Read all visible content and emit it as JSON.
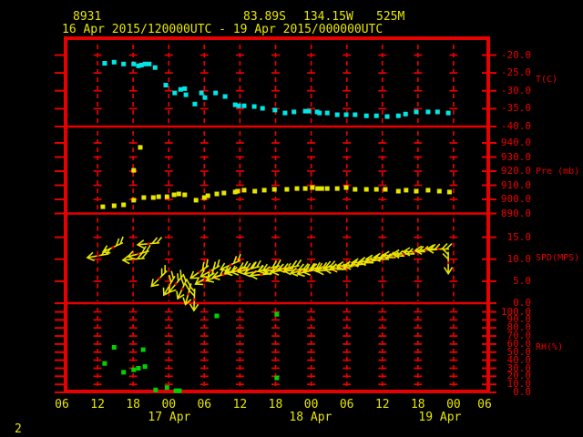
{
  "page_number": "2",
  "header": {
    "station_id": "8931",
    "latitude": "83.89S",
    "longitude": "134.15W",
    "elevation": "525M",
    "time_range": "16 Apr 2015/120000UTC - 19 Apr 2015/000000UTC"
  },
  "colors": {
    "background": "#000000",
    "red": "#e60000",
    "yellow": "#e6e600",
    "cyan": "#00e6e6",
    "green": "#00d200"
  },
  "x_axis": {
    "hour_labels": [
      "06",
      "12",
      "18",
      "00",
      "06",
      "12",
      "18",
      "00",
      "06",
      "12",
      "18",
      "00",
      "06"
    ],
    "date_labels": [
      {
        "label": "17 Apr",
        "h": 18.1
      },
      {
        "label": "18 Apr",
        "h": 41.9
      },
      {
        "label": "19 Apr",
        "h": 63.7
      }
    ],
    "hours_span": 72,
    "start_label": "16 Apr 2015 06UTC"
  },
  "chart_data": [
    {
      "id": "temperature",
      "type": "scatter",
      "marker": "square",
      "color": "#00e6e6",
      "ylabel": "T(C)",
      "ylim": [
        -40,
        -15.8
      ],
      "yticks": [
        {
          "v": -20,
          "label": "-20.0"
        },
        {
          "v": -25,
          "label": "-25.0"
        },
        {
          "v": -30,
          "label": "-30.0"
        },
        {
          "v": -35,
          "label": "-35.0"
        },
        {
          "v": -40,
          "label": "-40.0"
        }
      ],
      "points": [
        [
          7.2,
          -22.3
        ],
        [
          8.8,
          -22.0
        ],
        [
          10.4,
          -22.5
        ],
        [
          12.1,
          -22.5
        ],
        [
          12.9,
          -23.0
        ],
        [
          13.4,
          -22.8
        ],
        [
          14.0,
          -22.5
        ],
        [
          14.7,
          -22.5
        ],
        [
          15.7,
          -23.5
        ],
        [
          17.5,
          -28.4
        ],
        [
          19.0,
          -30.6
        ],
        [
          20.0,
          -29.6
        ],
        [
          20.7,
          -29.4
        ],
        [
          20.9,
          -31.1
        ],
        [
          22.4,
          -33.7
        ],
        [
          23.5,
          -30.6
        ],
        [
          24.1,
          -31.9
        ],
        [
          25.9,
          -30.6
        ],
        [
          27.5,
          -31.6
        ],
        [
          29.2,
          -33.9
        ],
        [
          29.8,
          -34.2
        ],
        [
          30.7,
          -34.2
        ],
        [
          32.4,
          -34.4
        ],
        [
          33.8,
          -34.9
        ],
        [
          35.9,
          -35.4
        ],
        [
          37.6,
          -36.2
        ],
        [
          39.1,
          -35.9
        ],
        [
          41.0,
          -35.7
        ],
        [
          41.6,
          -35.7
        ],
        [
          43.0,
          -35.9
        ],
        [
          43.4,
          -36.2
        ],
        [
          44.7,
          -36.2
        ],
        [
          46.4,
          -36.7
        ],
        [
          47.9,
          -36.7
        ],
        [
          49.4,
          -36.7
        ],
        [
          51.3,
          -37.0
        ],
        [
          53.0,
          -37.0
        ],
        [
          54.8,
          -37.2
        ],
        [
          56.7,
          -37.0
        ],
        [
          57.9,
          -36.5
        ],
        [
          59.7,
          -35.9
        ],
        [
          61.7,
          -35.9
        ],
        [
          63.3,
          -35.9
        ],
        [
          65.1,
          -36.2
        ]
      ]
    },
    {
      "id": "pressure",
      "type": "scatter",
      "marker": "square",
      "color": "#e6e600",
      "ylabel": "Pre (mb)",
      "ylim": [
        890,
        951.6
      ],
      "yticks": [
        {
          "v": 940,
          "label": "940.0"
        },
        {
          "v": 930,
          "label": "930.0"
        },
        {
          "v": 920,
          "label": "920.0"
        },
        {
          "v": 910,
          "label": "910.0"
        },
        {
          "v": 900,
          "label": "900.0"
        },
        {
          "v": 890,
          "label": "890.0"
        }
      ],
      "points": [
        [
          6.9,
          894.8
        ],
        [
          8.8,
          895.5
        ],
        [
          10.4,
          896.1
        ],
        [
          12.1,
          899.4
        ],
        [
          12.1,
          920.6
        ],
        [
          13.2,
          936.8
        ],
        [
          13.8,
          901.3
        ],
        [
          15.4,
          901.3
        ],
        [
          16.3,
          901.9
        ],
        [
          17.7,
          901.9
        ],
        [
          18.9,
          903.2
        ],
        [
          19.7,
          903.9
        ],
        [
          20.7,
          903.2
        ],
        [
          22.6,
          899.4
        ],
        [
          24.0,
          901.3
        ],
        [
          24.6,
          902.6
        ],
        [
          26.1,
          903.9
        ],
        [
          27.3,
          904.5
        ],
        [
          29.2,
          905.2
        ],
        [
          29.6,
          905.8
        ],
        [
          30.7,
          906.5
        ],
        [
          32.5,
          905.8
        ],
        [
          34.1,
          906.5
        ],
        [
          35.8,
          907.1
        ],
        [
          37.9,
          907.1
        ],
        [
          39.6,
          907.7
        ],
        [
          41.0,
          907.7
        ],
        [
          42.2,
          908.4
        ],
        [
          43.1,
          907.7
        ],
        [
          43.8,
          907.7
        ],
        [
          44.7,
          907.7
        ],
        [
          46.4,
          907.7
        ],
        [
          47.9,
          908.4
        ],
        [
          49.4,
          907.1
        ],
        [
          51.3,
          907.1
        ],
        [
          53.0,
          907.1
        ],
        [
          54.5,
          907.1
        ],
        [
          56.7,
          905.8
        ],
        [
          58.0,
          906.5
        ],
        [
          59.7,
          905.8
        ],
        [
          61.7,
          906.5
        ],
        [
          63.6,
          905.8
        ],
        [
          65.3,
          905.2
        ]
      ]
    },
    {
      "id": "wind_speed",
      "type": "wind-barb",
      "color": "#e6e600",
      "ylabel": "SPD(MPS)",
      "ylim": [
        0,
        20.4
      ],
      "yticks": [
        {
          "v": 15,
          "label": "15.0"
        },
        {
          "v": 10,
          "label": "10.0"
        },
        {
          "v": 5,
          "label": "5.0"
        },
        {
          "v": 0,
          "label": "0.0"
        }
      ],
      "barbs": [
        [
          6.1,
          10.8,
          170
        ],
        [
          8.6,
          12.7,
          155
        ],
        [
          12.1,
          10.0,
          175
        ],
        [
          12.9,
          11.2,
          165
        ],
        [
          14.6,
          13.5,
          175
        ],
        [
          16.4,
          5.6,
          135
        ],
        [
          18.1,
          4.0,
          120
        ],
        [
          19.2,
          4.4,
          130
        ],
        [
          20.3,
          3.3,
          115
        ],
        [
          21.3,
          2.1,
          105
        ],
        [
          22.3,
          0.8,
          92
        ],
        [
          23.2,
          7.1,
          145
        ],
        [
          24.1,
          5.6,
          150
        ],
        [
          25.0,
          7.3,
          150
        ],
        [
          26.1,
          6.0,
          160
        ],
        [
          27.2,
          6.5,
          165
        ],
        [
          28.4,
          8.7,
          155
        ],
        [
          29.3,
          7.5,
          165
        ],
        [
          30.4,
          7.5,
          170
        ],
        [
          31.5,
          7.7,
          165
        ],
        [
          32.5,
          7.1,
          170
        ],
        [
          33.6,
          6.5,
          175
        ],
        [
          34.9,
          7.9,
          165
        ],
        [
          35.9,
          7.5,
          175
        ],
        [
          37.2,
          7.5,
          170
        ],
        [
          38.2,
          8.1,
          170
        ],
        [
          39.3,
          7.5,
          175
        ],
        [
          40.4,
          7.3,
          170
        ],
        [
          41.5,
          7.3,
          165
        ],
        [
          42.5,
          7.5,
          170
        ],
        [
          43.8,
          8.1,
          175
        ],
        [
          44.8,
          7.5,
          175
        ],
        [
          46.1,
          7.7,
          180
        ],
        [
          47.1,
          8.1,
          175
        ],
        [
          48.2,
          8.5,
          180
        ],
        [
          49.4,
          8.7,
          175
        ],
        [
          50.7,
          9.2,
          180
        ],
        [
          51.9,
          9.6,
          175
        ],
        [
          53.1,
          10.0,
          180
        ],
        [
          54.4,
          10.4,
          180
        ],
        [
          55.9,
          10.8,
          182
        ],
        [
          57.6,
          11.2,
          180
        ],
        [
          59.4,
          11.7,
          180
        ],
        [
          61.4,
          12.1,
          178
        ],
        [
          63.4,
          12.3,
          180
        ],
        [
          65.1,
          9.2,
          90
        ]
      ]
    },
    {
      "id": "relative_humidity",
      "type": "scatter",
      "marker": "square",
      "color": "#00d200",
      "ylabel": "RH(%)",
      "ylim": [
        0,
        110.8
      ],
      "yticks": [
        {
          "v": 100,
          "label": "100.0"
        },
        {
          "v": 90,
          "label": "90.0"
        },
        {
          "v": 80,
          "label": "80.0"
        },
        {
          "v": 70,
          "label": "70.0"
        },
        {
          "v": 60,
          "label": "60.0"
        },
        {
          "v": 50,
          "label": "50.0"
        },
        {
          "v": 40,
          "label": "40.0"
        },
        {
          "v": 30,
          "label": "30.0"
        },
        {
          "v": 20,
          "label": "20.0"
        },
        {
          "v": 10,
          "label": "10.0"
        },
        {
          "v": 0,
          "label": "0.0"
        }
      ],
      "points": [
        [
          7.2,
          36
        ],
        [
          8.8,
          56
        ],
        [
          10.4,
          25
        ],
        [
          12.1,
          28
        ],
        [
          12.9,
          30
        ],
        [
          13.7,
          53
        ],
        [
          14.0,
          32
        ],
        [
          15.8,
          3
        ],
        [
          17.7,
          6
        ],
        [
          19.2,
          2
        ],
        [
          19.8,
          2
        ],
        [
          26.1,
          95
        ],
        [
          36.2,
          97
        ],
        [
          36.2,
          18
        ]
      ]
    }
  ]
}
